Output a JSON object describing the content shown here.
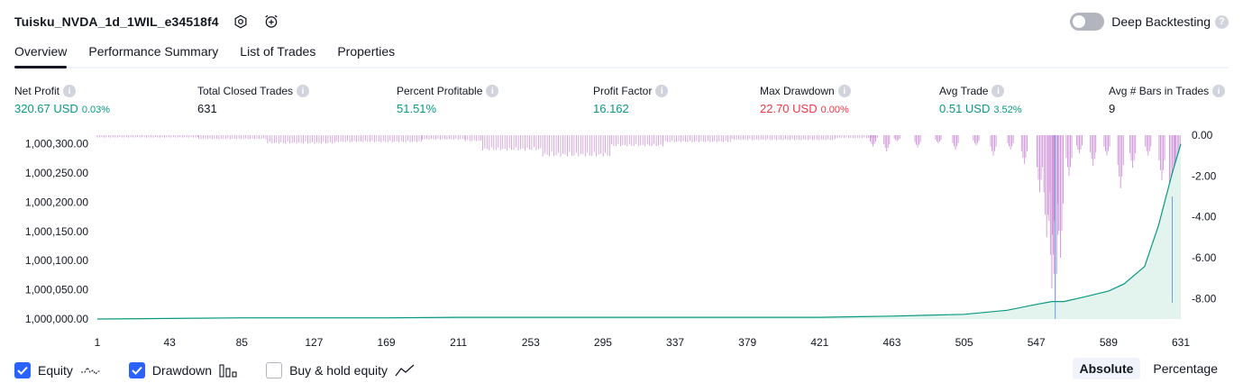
{
  "header": {
    "title": "Tuisku_NVDA_1d_1WIL_e34518f4",
    "icons": [
      "settings-icon",
      "alarm-add-icon"
    ],
    "deep_backtesting_label": "Deep Backtesting",
    "deep_backtesting_enabled": false
  },
  "tabs": [
    {
      "label": "Overview",
      "active": true
    },
    {
      "label": "Performance Summary",
      "active": false
    },
    {
      "label": "List of Trades",
      "active": false
    },
    {
      "label": "Properties",
      "active": false
    }
  ],
  "metrics": {
    "net_profit": {
      "label": "Net Profit",
      "value": "320.67 USD",
      "pct": "0.03%"
    },
    "total_closed_trades": {
      "label": "Total Closed Trades",
      "value": "631"
    },
    "percent_profitable": {
      "label": "Percent Profitable",
      "value": "51.51%"
    },
    "profit_factor": {
      "label": "Profit Factor",
      "value": "16.162"
    },
    "max_drawdown": {
      "label": "Max Drawdown",
      "value": "22.70 USD",
      "pct": "0.00%"
    },
    "avg_trade": {
      "label": "Avg Trade",
      "value": "0.51 USD",
      "pct": "3.52%"
    },
    "avg_bars": {
      "label": "Avg # Bars in Trades",
      "value": "9"
    }
  },
  "chart_data": {
    "type": "area",
    "x_ticks": [
      "1",
      "43",
      "85",
      "127",
      "169",
      "211",
      "253",
      "295",
      "337",
      "379",
      "421",
      "463",
      "505",
      "547",
      "589",
      "631"
    ],
    "xlim": [
      1,
      631
    ],
    "left_axis_ticks": [
      "1,000,300.00",
      "1,000,250.00",
      "1,000,200.00",
      "1,000,150.00",
      "1,000,100.00",
      "1,000,050.00",
      "1,000,000.00"
    ],
    "right_axis_ticks": [
      "0.00",
      "-2.00",
      "-4.00",
      "-6.00",
      "-8.00"
    ],
    "equity": {
      "ylim": [
        1000000,
        1000315
      ],
      "points": [
        [
          1,
          1000000
        ],
        [
          43,
          1000001
        ],
        [
          85,
          1000002
        ],
        [
          127,
          1000002
        ],
        [
          169,
          1000002
        ],
        [
          211,
          1000003
        ],
        [
          253,
          1000003
        ],
        [
          295,
          1000003
        ],
        [
          337,
          1000003
        ],
        [
          379,
          1000003
        ],
        [
          421,
          1000003
        ],
        [
          445,
          1000004
        ],
        [
          463,
          1000005
        ],
        [
          505,
          1000008
        ],
        [
          530,
          1000015
        ],
        [
          547,
          1000025
        ],
        [
          556,
          1000030
        ],
        [
          563,
          1000030
        ],
        [
          575,
          1000038
        ],
        [
          589,
          1000048
        ],
        [
          598,
          1000060
        ],
        [
          610,
          1000090
        ],
        [
          618,
          1000160
        ],
        [
          626,
          1000250
        ],
        [
          631,
          1000300
        ]
      ],
      "color": "#089981"
    },
    "drawdown": {
      "ylim": [
        -9,
        0
      ],
      "segments": [
        [
          1,
          60,
          -0.12
        ],
        [
          60,
          100,
          -0.2
        ],
        [
          100,
          140,
          -0.42
        ],
        [
          140,
          190,
          -0.35
        ],
        [
          190,
          215,
          -0.22
        ],
        [
          215,
          225,
          -0.3
        ],
        [
          225,
          260,
          -0.75
        ],
        [
          260,
          300,
          -1.05
        ],
        [
          300,
          330,
          -0.55
        ],
        [
          330,
          370,
          -0.35
        ],
        [
          370,
          430,
          -0.25
        ],
        [
          430,
          455,
          -0.15
        ]
      ],
      "spikes": [
        [
          452,
          -0.55
        ],
        [
          460,
          -0.8
        ],
        [
          466,
          -0.3
        ],
        [
          478,
          -0.6
        ],
        [
          490,
          -0.4
        ],
        [
          500,
          -0.7
        ],
        [
          512,
          -0.5
        ],
        [
          522,
          -1.0
        ],
        [
          532,
          -0.7
        ],
        [
          540,
          -1.4
        ],
        [
          549,
          -2.8
        ],
        [
          553,
          -5.0
        ],
        [
          556,
          -7.5
        ],
        [
          558,
          -8.7
        ],
        [
          561,
          -6.0
        ],
        [
          566,
          -2.0
        ],
        [
          572,
          -0.9
        ],
        [
          580,
          -1.5
        ],
        [
          588,
          -1.0
        ],
        [
          596,
          -2.6
        ],
        [
          603,
          -1.6
        ],
        [
          612,
          -1.0
        ],
        [
          620,
          -2.2
        ],
        [
          626,
          -8.0
        ],
        [
          629,
          -4.5
        ]
      ],
      "color": "#ce93d8"
    }
  },
  "legend": [
    {
      "label": "Equity",
      "checked": true,
      "icon": "equity-line-icon"
    },
    {
      "label": "Drawdown",
      "checked": true,
      "icon": "drawdown-bars-icon"
    },
    {
      "label": "Buy & hold equity",
      "checked": false,
      "icon": "buy-hold-line-icon"
    }
  ],
  "modes": [
    {
      "label": "Absolute",
      "active": true
    },
    {
      "label": "Percentage",
      "active": false
    }
  ]
}
